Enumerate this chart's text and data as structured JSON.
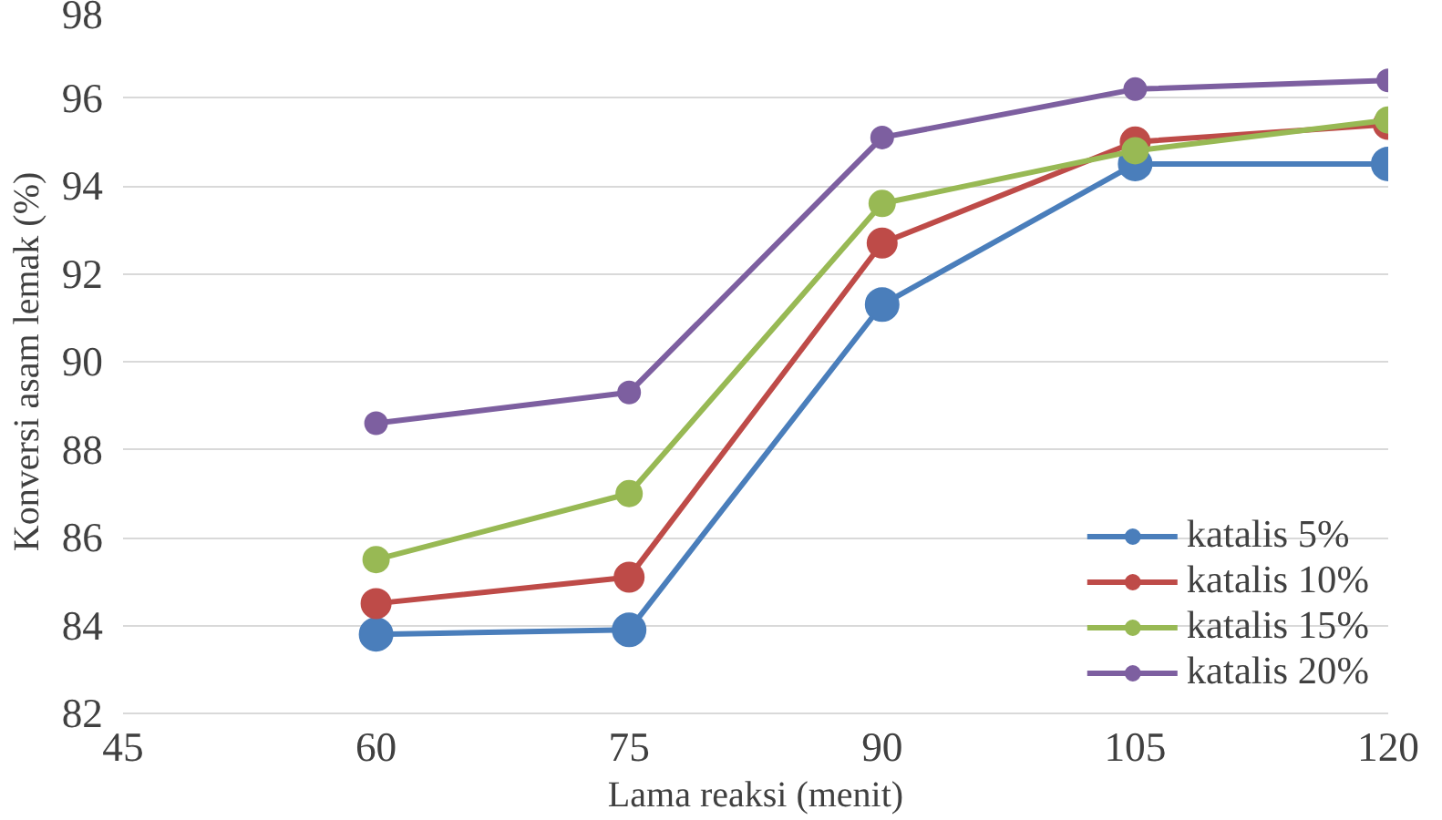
{
  "chart_data": {
    "type": "line",
    "xlabel": "Lama reaksi (menit)",
    "ylabel": "Konversi asam lemak (%)",
    "x": [
      60,
      75,
      90,
      105,
      120
    ],
    "series": [
      {
        "name": "katalis 5%",
        "color": "#4a7ebb",
        "values": [
          83.8,
          83.9,
          91.3,
          94.5,
          94.5
        ]
      },
      {
        "name": "katalis 10%",
        "color": "#be4b48",
        "values": [
          84.5,
          85.1,
          92.7,
          95.0,
          95.4
        ]
      },
      {
        "name": "katalis 15%",
        "color": "#98b954",
        "values": [
          85.5,
          87.0,
          93.6,
          94.8,
          95.5
        ]
      },
      {
        "name": "katalis 20%",
        "color": "#7d5fa0",
        "values": [
          88.6,
          89.3,
          95.1,
          96.2,
          96.4
        ]
      }
    ],
    "xlim": [
      45,
      120
    ],
    "xticks": [
      45,
      60,
      75,
      90,
      105,
      120
    ],
    "ylim": [
      82,
      98
    ],
    "yticks": [
      82,
      84,
      86,
      88,
      90,
      92,
      94,
      96,
      98
    ],
    "grid": "y",
    "legend": "bottom right",
    "marker": "circle",
    "line_style": "solid"
  }
}
